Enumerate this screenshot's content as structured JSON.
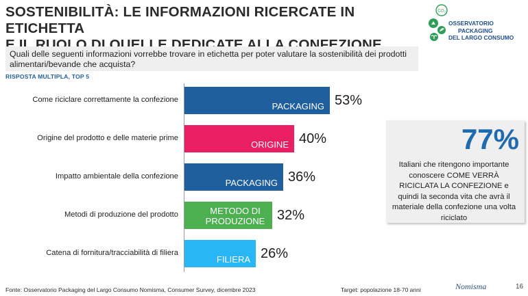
{
  "title": {
    "line1": "SOSTENIBILITÀ: LE INFORMAZIONI RICERCATE IN ETICHETTA",
    "line2": "E IL RUOLO DI QUELLE DEDICATE ALLA CONFEZIONE"
  },
  "logo": {
    "line1": "OSSERVATORIO",
    "line2": "PACKAGING",
    "line3": "DEL LARGO CONSUMO",
    "co2": "CO₂",
    "icons": [
      "co2-icon",
      "recycle-icon",
      "leaf-icon",
      "plant-icon"
    ]
  },
  "question": "Quali delle seguenti informazioni vorrebbe trovare in etichetta per poter valutare la sostenibilità dei prodotti alimentari/bevande che acquista?",
  "subtitle": "RISPOSTA MULTIPLA, TOP 5",
  "chart_data": {
    "type": "bar",
    "orientation": "horizontal",
    "categories": [
      "Come riciclare correttamente la confezione",
      "Origine del prodotto e delle materie prime",
      "Impatto ambientale della confezione",
      "Metodi di produzione del prodotto",
      "Catena di fornitura/tracciabilità di filiera"
    ],
    "values": [
      53,
      40,
      36,
      32,
      26
    ],
    "value_labels": [
      "53%",
      "40%",
      "36%",
      "32%",
      "26%"
    ],
    "bar_labels": [
      "PACKAGING",
      "ORIGINE",
      "PACKAGING",
      "METODO DI PRODUZIONE",
      "FILIERA"
    ],
    "colors": [
      "#1f5f9e",
      "#e91e63",
      "#1f5f9e",
      "#4caf50",
      "#29b6f6"
    ],
    "xlim": [
      0,
      100
    ],
    "unit": "%"
  },
  "callout": {
    "value": "77%",
    "text_pre": "Italiani che ritengono importante conoscere ",
    "text_bold": "COME VERRÀ RICICLATA LA CONFEZIONE",
    "text_post": " e quindi la seconda vita che avrà il materiale della confezione una volta riciclato"
  },
  "footer": {
    "source": "Fonte: Osservatorio Packaging del Largo Consumo Nomisma, Consumer Survey, dicembre 2023",
    "target": "Target: popolazione 18-70 anni",
    "brand": "Nomisma",
    "page": "16"
  }
}
